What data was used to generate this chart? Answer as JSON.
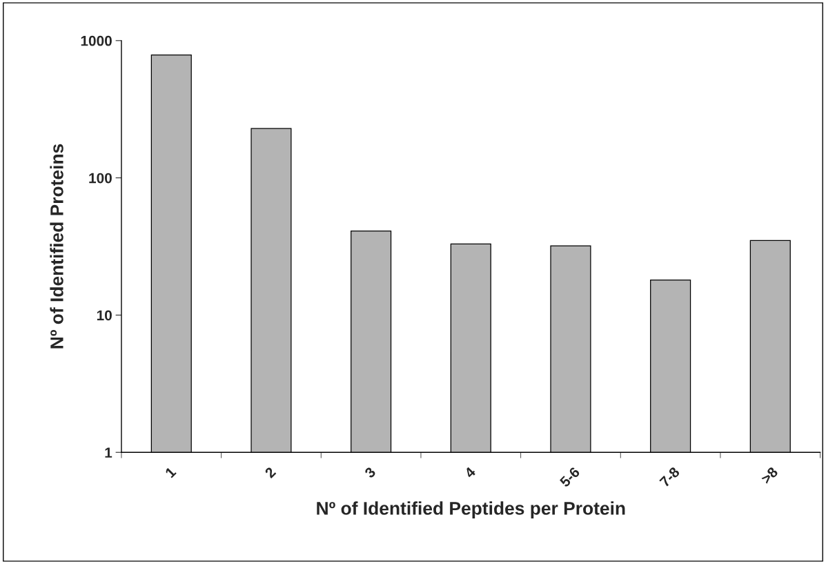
{
  "chart_data": {
    "type": "bar",
    "xlabel": "Nº of Identified Peptides per Protein",
    "ylabel": "Nº of Identified Proteins",
    "categories": [
      "1",
      "2",
      "3",
      "4",
      "5-6",
      "7-8",
      ">8"
    ],
    "values": [
      785,
      229,
      41,
      33,
      32,
      18,
      35
    ],
    "color": "#b4b4b4",
    "log": true,
    "ylim": [
      1,
      1000
    ],
    "yticks": [
      1,
      10,
      100,
      1000
    ],
    "grid": false,
    "legend": false
  }
}
